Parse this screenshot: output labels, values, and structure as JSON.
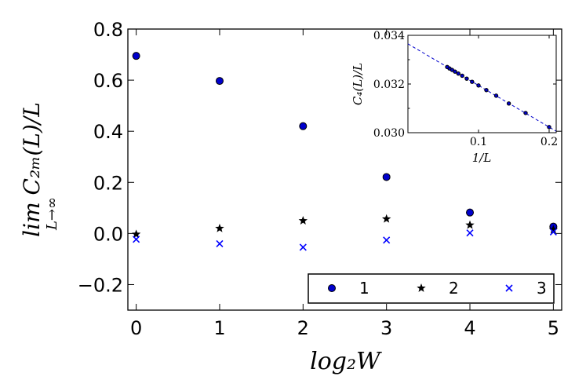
{
  "chart_data": [
    {
      "type": "scatter",
      "xlabel": "log₂W",
      "ylabel": "lim C₂ₘ(L)/L",
      "ylabel_sub": "L→∞",
      "xlim": [
        -0.1,
        5.1
      ],
      "ylim": [
        -0.3,
        0.8
      ],
      "xticks": [
        0,
        1,
        2,
        3,
        4,
        5
      ],
      "xtick_labels": [
        "0",
        "1",
        "2",
        "3",
        "4",
        "5"
      ],
      "yticks": [
        -0.2,
        0.0,
        0.2,
        0.4,
        0.6,
        0.8
      ],
      "ytick_labels": [
        "−0.2",
        "0.0",
        "0.2",
        "0.4",
        "0.6",
        "0.8"
      ],
      "legend_position": "bottom-right",
      "series": [
        {
          "name": "1",
          "marker": "circle",
          "color": "#0000cc",
          "x": [
            0,
            1,
            2,
            3,
            4,
            5
          ],
          "y": [
            0.695,
            0.597,
            0.42,
            0.221,
            0.082,
            0.027
          ]
        },
        {
          "name": "2",
          "marker": "star",
          "color": "#000000",
          "x": [
            0,
            1,
            2,
            3,
            4,
            5
          ],
          "y": [
            -0.003,
            0.02,
            0.05,
            0.057,
            0.033,
            0.015
          ]
        },
        {
          "name": "3",
          "marker": "x",
          "color": "#0000ff",
          "x": [
            0,
            1,
            2,
            3,
            4,
            5
          ],
          "y": [
            -0.023,
            -0.04,
            -0.054,
            -0.026,
            0.002,
            0.006
          ]
        }
      ]
    },
    {
      "type": "scatter",
      "xlabel": "1/L",
      "ylabel": "C₄(L)/L",
      "xlim": [
        0.0,
        0.21
      ],
      "ylim": [
        0.03,
        0.034
      ],
      "xticks": [
        0.1,
        0.2
      ],
      "xtick_labels": [
        "0.1",
        "0.2"
      ],
      "yticks": [
        0.03,
        0.032,
        0.034
      ],
      "ytick_labels": [
        "0.030",
        "0.032",
        "0.034"
      ],
      "fit_line": {
        "x": [
          0.0,
          0.21
        ],
        "y": [
          0.03365,
          0.03006
        ],
        "color": "#0000cc",
        "style": "dashed"
      },
      "series": [
        {
          "marker": "circle",
          "color": "#0000cc",
          "x": [
            0.2,
            0.1667,
            0.1429,
            0.125,
            0.1111,
            0.1,
            0.0909,
            0.0833,
            0.0769,
            0.0714,
            0.0667,
            0.0625,
            0.0588,
            0.0556
          ],
          "y": [
            0.03023,
            0.03081,
            0.0312,
            0.03152,
            0.03175,
            0.03194,
            0.03209,
            0.03222,
            0.03234,
            0.03243,
            0.03251,
            0.03258,
            0.03264,
            0.0327
          ]
        }
      ]
    }
  ]
}
